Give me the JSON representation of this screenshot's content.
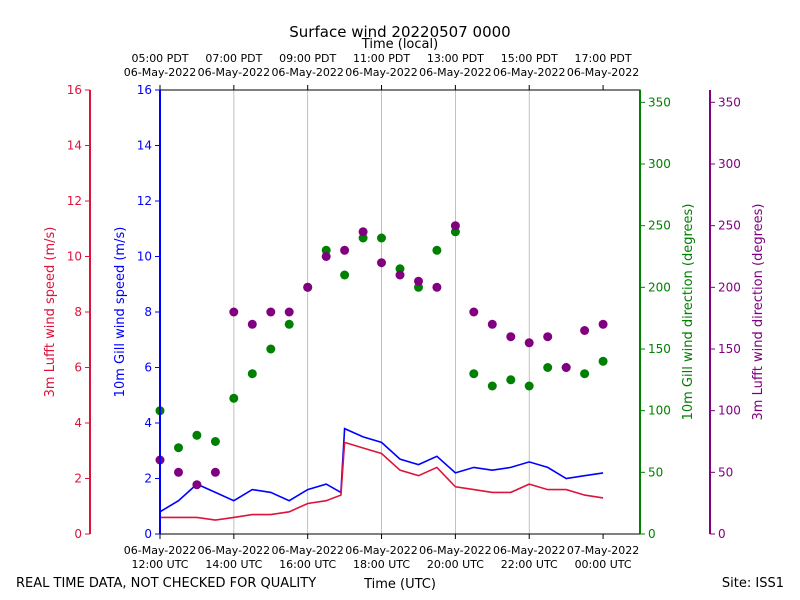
{
  "chart_data": {
    "type": "scatter",
    "title": "Surface wind 20220507 0000",
    "top_axis_label": "Time (local)",
    "xlabel": "Time (UTC)",
    "footer_left": "REAL TIME DATA, NOT CHECKED FOR QUALITY",
    "footer_right": "Site: ISS1",
    "x_range_hours_utc": [
      11,
      24
    ],
    "x_ticks_bottom": [
      {
        "hour": 11,
        "line1": "06-May-2022",
        "line2": "12:00 UTC"
      },
      {
        "hour": 13,
        "line1": "06-May-2022",
        "line2": "14:00 UTC"
      },
      {
        "hour": 15,
        "line1": "06-May-2022",
        "line2": "16:00 UTC"
      },
      {
        "hour": 17,
        "line1": "06-May-2022",
        "line2": "18:00 UTC"
      },
      {
        "hour": 19,
        "line1": "06-May-2022",
        "line2": "20:00 UTC"
      },
      {
        "hour": 21,
        "line1": "06-May-2022",
        "line2": "22:00 UTC"
      },
      {
        "hour": 23,
        "line1": "07-May-2022",
        "line2": "00:00 UTC"
      }
    ],
    "x_ticks_top": [
      {
        "hour": 11,
        "line1": "05:00 PDT",
        "line2": "06-May-2022"
      },
      {
        "hour": 13,
        "line1": "07:00 PDT",
        "line2": "06-May-2022"
      },
      {
        "hour": 15,
        "line1": "09:00 PDT",
        "line2": "06-May-2022"
      },
      {
        "hour": 17,
        "line1": "11:00 PDT",
        "line2": "06-May-2022"
      },
      {
        "hour": 19,
        "line1": "13:00 PDT",
        "line2": "06-May-2022"
      },
      {
        "hour": 21,
        "line1": "15:00 PDT",
        "line2": "06-May-2022"
      },
      {
        "hour": 23,
        "line1": "17:00 PDT",
        "line2": "06-May-2022"
      }
    ],
    "axes": {
      "lufft_speed": {
        "label": "3m Lufft wind speed (m/s)",
        "ylim": [
          0,
          16
        ],
        "ticks": [
          0,
          2,
          4,
          6,
          8,
          10,
          12,
          14,
          16
        ],
        "color": "#dc143c"
      },
      "gill_speed": {
        "label": "10m Gill wind speed (m/s)",
        "ylim": [
          0,
          16
        ],
        "ticks": [
          0,
          2,
          4,
          6,
          8,
          10,
          12,
          14,
          16
        ],
        "color": "#0000ff"
      },
      "gill_dir": {
        "label": "10m Gill wind direction (degrees)",
        "ylim": [
          0,
          360
        ],
        "ticks": [
          0,
          50,
          100,
          150,
          200,
          250,
          300,
          350
        ],
        "color": "#008000"
      },
      "lufft_dir": {
        "label": "3m Lufft wind direction (degrees)",
        "ylim": [
          0,
          360
        ],
        "ticks": [
          0,
          50,
          100,
          150,
          200,
          250,
          300,
          350
        ],
        "color": "#800080"
      }
    },
    "series": [
      {
        "name": "10m Gill wind speed",
        "kind": "line",
        "axis": "gill_speed",
        "color": "#0000ff",
        "x": [
          11.0,
          11.5,
          12.0,
          12.5,
          13.0,
          13.5,
          14.0,
          14.5,
          15.0,
          15.5,
          15.9,
          16.0,
          16.5,
          17.0,
          17.5,
          18.0,
          18.5,
          19.0,
          19.5,
          20.0,
          20.5,
          21.0,
          21.5,
          22.0,
          22.5,
          23.0
        ],
        "y": [
          0.8,
          1.2,
          1.8,
          1.5,
          1.2,
          1.6,
          1.5,
          1.2,
          1.6,
          1.8,
          1.5,
          3.8,
          3.5,
          3.3,
          2.7,
          2.5,
          2.8,
          2.2,
          2.4,
          2.3,
          2.4,
          2.6,
          2.4,
          2.0,
          2.1,
          2.2
        ]
      },
      {
        "name": "3m Lufft wind speed",
        "kind": "line",
        "axis": "lufft_speed",
        "color": "#dc143c",
        "x": [
          11.0,
          11.5,
          12.0,
          12.5,
          13.0,
          13.5,
          14.0,
          14.5,
          15.0,
          15.5,
          15.9,
          16.0,
          16.5,
          17.0,
          17.5,
          18.0,
          18.5,
          19.0,
          19.5,
          20.0,
          20.5,
          21.0,
          21.5,
          22.0,
          22.5,
          23.0
        ],
        "y": [
          0.6,
          0.6,
          0.6,
          0.5,
          0.6,
          0.7,
          0.7,
          0.8,
          1.1,
          1.2,
          1.4,
          3.3,
          3.1,
          2.9,
          2.3,
          2.1,
          2.4,
          1.7,
          1.6,
          1.5,
          1.5,
          1.8,
          1.6,
          1.6,
          1.4,
          1.3
        ]
      },
      {
        "name": "10m Gill wind direction",
        "kind": "scatter",
        "axis": "gill_dir",
        "color": "#008000",
        "x": [
          11.0,
          11.5,
          12.0,
          12.5,
          13.0,
          13.5,
          14.0,
          14.5,
          15.0,
          15.5,
          16.0,
          16.5,
          17.0,
          17.5,
          18.0,
          18.5,
          19.0,
          19.5,
          20.0,
          20.5,
          21.0,
          21.5,
          22.0,
          22.5,
          23.0
        ],
        "y": [
          100,
          70,
          80,
          75,
          110,
          130,
          150,
          170,
          200,
          230,
          210,
          240,
          240,
          215,
          200,
          230,
          245,
          130,
          120,
          125,
          120,
          135,
          135,
          130,
          140
        ]
      },
      {
        "name": "3m Lufft wind direction",
        "kind": "scatter",
        "axis": "lufft_dir",
        "color": "#800080",
        "x": [
          11.0,
          11.5,
          12.0,
          12.5,
          13.0,
          13.5,
          14.0,
          14.5,
          15.0,
          15.5,
          16.0,
          16.5,
          17.0,
          17.5,
          18.0,
          18.5,
          19.0,
          19.5,
          20.0,
          20.5,
          21.0,
          21.5,
          22.0,
          22.5,
          23.0
        ],
        "y": [
          60,
          50,
          40,
          50,
          180,
          170,
          180,
          180,
          200,
          225,
          230,
          245,
          220,
          210,
          205,
          200,
          250,
          180,
          170,
          160,
          155,
          160,
          135,
          165,
          170
        ]
      }
    ]
  }
}
